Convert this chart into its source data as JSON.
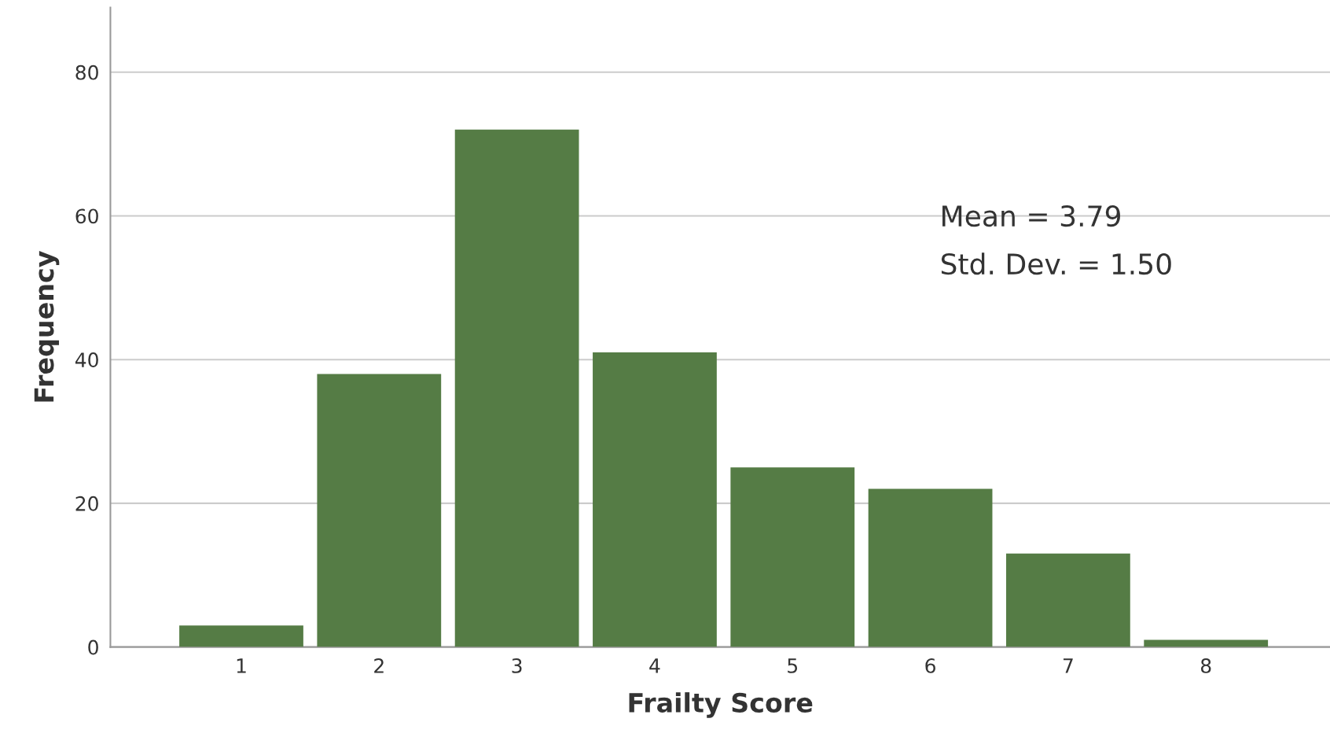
{
  "chart_data": {
    "type": "bar",
    "xlabel": "Frailty Score",
    "ylabel": "Frequency",
    "categories": [
      "1",
      "2",
      "3",
      "4",
      "5",
      "6",
      "7",
      "8"
    ],
    "values": [
      3,
      38,
      72,
      41,
      25,
      22,
      13,
      1
    ],
    "color": "#557c45",
    "ylim": [
      0,
      89
    ],
    "yticks": [
      0,
      20,
      40,
      60,
      80
    ],
    "grid": "y",
    "annotations": [
      "Mean = 3.79",
      "Std. Dev. = 1.50"
    ]
  }
}
